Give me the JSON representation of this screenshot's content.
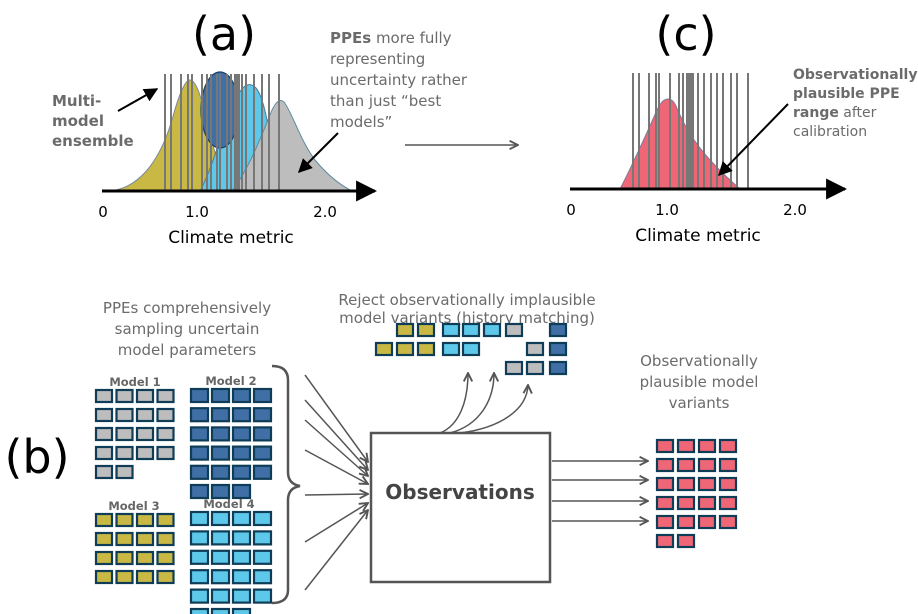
{
  "panels": {
    "a": "(a)",
    "b": "(b)",
    "c": "(c)"
  },
  "axis": {
    "ticks": [
      "0",
      "1.0",
      "2.0"
    ],
    "label": "Climate metric"
  },
  "annotations": {
    "multi_model": [
      "Multi-",
      "model",
      "ensemble"
    ],
    "ppes_bold": "PPEs",
    "ppes_rest": " more fully",
    "ppes_lines": [
      "representing",
      "uncertainty rather",
      "than just “best",
      "models”"
    ],
    "calib_bold": [
      "Observationally",
      "plausible PPE",
      "range"
    ],
    "calib_after": " after",
    "calib_last": "calibration"
  },
  "b": {
    "ppe_text": [
      "PPEs comprehensively",
      "sampling uncertain",
      "model parameters"
    ],
    "models": [
      {
        "label": "Model 1",
        "count": 18,
        "color": "#bdbdbd"
      },
      {
        "label": "Model 2",
        "count": 23,
        "color": "#3f6fa5"
      },
      {
        "label": "Model 3",
        "count": 16,
        "color": "#c9b944"
      },
      {
        "label": "Model 4",
        "count": 23,
        "color": "#5ec8ea"
      }
    ],
    "reject_text": [
      "Reject observationally implausible",
      "model variants (history matching)"
    ],
    "observations": "Observations",
    "plausible_text": [
      "Observationally",
      "plausible model",
      "variants"
    ],
    "plausible_count": 22
  },
  "colors": {
    "yellow": "#c9b944",
    "dark_blue": "#3f6fa5",
    "light_blue": "#5ec8ea",
    "gray": "#bdbdbd",
    "red": "#ef6677",
    "border": "#0f3d57"
  }
}
